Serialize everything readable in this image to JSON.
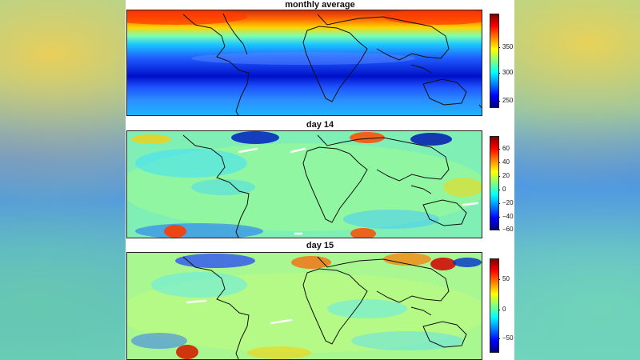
{
  "panels": [
    {
      "title": "monthly average",
      "colorbar_ticks": [
        "350",
        "300",
        "250"
      ],
      "colorbar_range": [
        230,
        400
      ]
    },
    {
      "title": "day  14",
      "colorbar_ticks": [
        "60",
        "40",
        "20",
        "0",
        "−20",
        "−40",
        "−60"
      ],
      "colorbar_range": [
        -70,
        70
      ]
    },
    {
      "title": "day  15",
      "colorbar_ticks": [
        "50",
        "0",
        "−50"
      ],
      "colorbar_range": [
        -85,
        90
      ]
    }
  ],
  "colormap": [
    "#00007f",
    "#0000ff",
    "#0080ff",
    "#00ffff",
    "#80ff80",
    "#ffff00",
    "#ff8000",
    "#ff0000",
    "#7f0000"
  ]
}
